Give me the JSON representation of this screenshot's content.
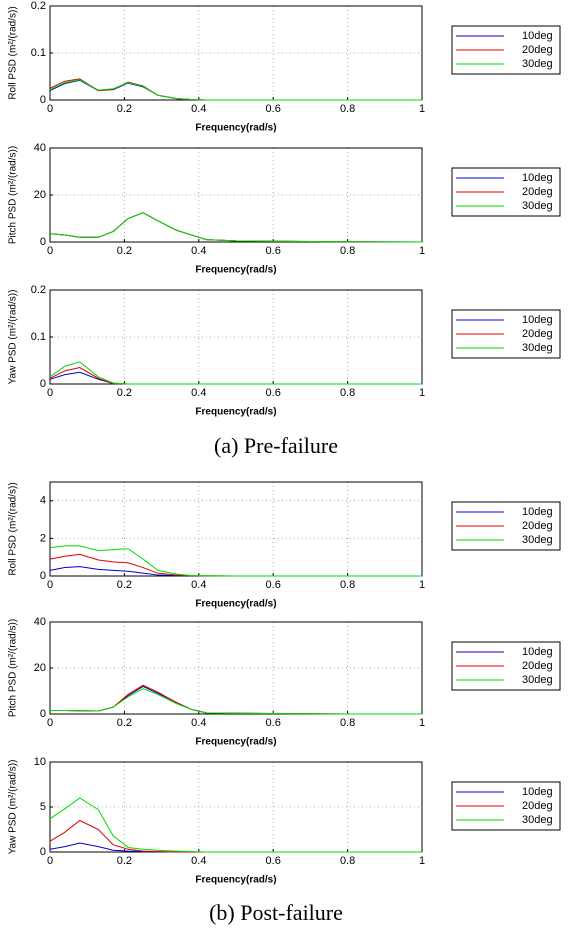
{
  "captions": [
    "(a) Pre-failure",
    "(b) Post-failure"
  ],
  "chart_data": [
    {
      "type": "line",
      "xlabel": "Frequency(rad/s)",
      "ylabel": "Roll PSD (m²/(rad/s))",
      "x": [
        0,
        0.04,
        0.08,
        0.13,
        0.17,
        0.21,
        0.25,
        0.29,
        0.34,
        0.38,
        0.42,
        0.5,
        0.6,
        0.7,
        0.8,
        1
      ],
      "xlim": [
        0,
        1
      ],
      "xticks": [
        0,
        0.2,
        0.4,
        0.6,
        0.8,
        1
      ],
      "ylim": [
        0,
        0.2
      ],
      "yticks": [
        0,
        0.1,
        0.2
      ],
      "grid": true,
      "series": [
        {
          "name": "10deg",
          "color": "#0000cc",
          "values": [
            0.02,
            0.035,
            0.042,
            0.02,
            0.022,
            0.036,
            0.028,
            0.01,
            0.003,
            0.001,
            0,
            0,
            0,
            0,
            0,
            0
          ]
        },
        {
          "name": "20deg",
          "color": "#dd0000",
          "values": [
            0.025,
            0.04,
            0.045,
            0.02,
            0.023,
            0.038,
            0.03,
            0.01,
            0.003,
            0.001,
            0,
            0,
            0,
            0,
            0,
            0
          ]
        },
        {
          "name": "30deg",
          "color": "#00dd00",
          "values": [
            0.022,
            0.037,
            0.043,
            0.021,
            0.024,
            0.037,
            0.029,
            0.01,
            0.003,
            0.001,
            0,
            0,
            0,
            0,
            0,
            0
          ]
        }
      ]
    },
    {
      "type": "line",
      "xlabel": "Frequency(rad/s)",
      "ylabel": "Pitch PSD (m²/(rad/s))",
      "x": [
        0,
        0.04,
        0.08,
        0.13,
        0.17,
        0.21,
        0.25,
        0.29,
        0.34,
        0.38,
        0.42,
        0.5,
        0.6,
        0.7,
        0.8,
        1
      ],
      "xlim": [
        0,
        1
      ],
      "xticks": [
        0,
        0.2,
        0.4,
        0.6,
        0.8,
        1
      ],
      "ylim": [
        0,
        40
      ],
      "yticks": [
        0,
        20,
        40
      ],
      "grid": true,
      "series": [
        {
          "name": "10deg",
          "color": "#0000cc",
          "values": [
            3.5,
            3,
            2,
            2,
            4.5,
            10,
            12.5,
            9,
            5,
            3,
            1,
            0.5,
            0.3,
            0.2,
            0.1,
            0
          ]
        },
        {
          "name": "20deg",
          "color": "#dd0000",
          "values": [
            3.5,
            3,
            2,
            2,
            4.5,
            10,
            12.5,
            9,
            5,
            3,
            1,
            0.5,
            0.3,
            0.2,
            0.1,
            0
          ]
        },
        {
          "name": "30deg",
          "color": "#00dd00",
          "values": [
            3.5,
            3,
            2,
            2,
            4.5,
            10,
            12.5,
            9,
            5,
            3,
            1,
            0.5,
            0.3,
            0.2,
            0.1,
            0
          ]
        }
      ]
    },
    {
      "type": "line",
      "xlabel": "Frequency(rad/s)",
      "ylabel": "Yaw PSD (m²/(rad/s))",
      "x": [
        0,
        0.04,
        0.08,
        0.13,
        0.17,
        0.21,
        0.25,
        0.29,
        0.34,
        0.38,
        0.42,
        0.5,
        0.6,
        0.7,
        0.8,
        1
      ],
      "xlim": [
        0,
        1
      ],
      "xticks": [
        0,
        0.2,
        0.4,
        0.6,
        0.8,
        1
      ],
      "ylim": [
        0,
        0.2
      ],
      "yticks": [
        0,
        0.1,
        0.2
      ],
      "grid": true,
      "series": [
        {
          "name": "10deg",
          "color": "#0000cc",
          "values": [
            0.01,
            0.02,
            0.025,
            0.01,
            0.001,
            0,
            0,
            0,
            0,
            0,
            0,
            0,
            0,
            0,
            0,
            0
          ]
        },
        {
          "name": "20deg",
          "color": "#dd0000",
          "values": [
            0.012,
            0.028,
            0.035,
            0.012,
            0.001,
            0,
            0,
            0,
            0,
            0,
            0,
            0,
            0,
            0,
            0,
            0
          ]
        },
        {
          "name": "30deg",
          "color": "#00dd00",
          "values": [
            0.015,
            0.038,
            0.047,
            0.015,
            0.002,
            0,
            0,
            0,
            0,
            0,
            0,
            0,
            0,
            0,
            0,
            0
          ]
        }
      ]
    },
    {
      "type": "line",
      "xlabel": "Frequency(rad/s)",
      "ylabel": "Roll PSD (m²/(rad/s))",
      "x": [
        0,
        0.04,
        0.08,
        0.13,
        0.17,
        0.21,
        0.25,
        0.29,
        0.34,
        0.38,
        0.42,
        0.5,
        0.6,
        0.7,
        0.8,
        1
      ],
      "xlim": [
        0,
        1
      ],
      "xticks": [
        0,
        0.2,
        0.4,
        0.6,
        0.8,
        1
      ],
      "ylim": [
        0,
        5
      ],
      "yticks": [
        0,
        2,
        4
      ],
      "grid": true,
      "series": [
        {
          "name": "10deg",
          "color": "#0000cc",
          "values": [
            0.3,
            0.45,
            0.5,
            0.35,
            0.3,
            0.25,
            0.15,
            0.05,
            0.02,
            0.01,
            0,
            0,
            0,
            0,
            0,
            0
          ]
        },
        {
          "name": "20deg",
          "color": "#dd0000",
          "values": [
            0.9,
            1.05,
            1.15,
            0.85,
            0.75,
            0.7,
            0.45,
            0.15,
            0.05,
            0.02,
            0.01,
            0,
            0,
            0,
            0,
            0
          ]
        },
        {
          "name": "30deg",
          "color": "#00dd00",
          "values": [
            1.5,
            1.6,
            1.6,
            1.35,
            1.4,
            1.45,
            0.9,
            0.3,
            0.1,
            0.03,
            0.01,
            0,
            0,
            0,
            0,
            0
          ]
        }
      ]
    },
    {
      "type": "line",
      "xlabel": "Frequency(rad/s)",
      "ylabel": "Pitch PSD (m²/(rad/s))",
      "x": [
        0,
        0.04,
        0.08,
        0.13,
        0.17,
        0.21,
        0.25,
        0.29,
        0.34,
        0.38,
        0.42,
        0.5,
        0.6,
        0.7,
        0.8,
        1
      ],
      "xlim": [
        0,
        1
      ],
      "xticks": [
        0,
        0.2,
        0.4,
        0.6,
        0.8,
        1
      ],
      "ylim": [
        0,
        40
      ],
      "yticks": [
        0,
        20,
        40
      ],
      "grid": true,
      "series": [
        {
          "name": "10deg",
          "color": "#0000cc",
          "values": [
            1.5,
            1.5,
            1.4,
            1.3,
            3,
            8,
            12,
            9,
            5,
            2,
            0.5,
            0.3,
            0.2,
            0.1,
            0,
            0
          ]
        },
        {
          "name": "20deg",
          "color": "#dd0000",
          "values": [
            1.5,
            1.5,
            1.4,
            1.3,
            3,
            8.5,
            12.5,
            9.5,
            5,
            2,
            0.5,
            0.3,
            0.2,
            0.1,
            0,
            0
          ]
        },
        {
          "name": "30deg",
          "color": "#00dd00",
          "values": [
            1.5,
            1.5,
            1.4,
            1.3,
            3,
            7.5,
            11,
            8.5,
            4.5,
            2,
            0.5,
            0.3,
            0.2,
            0.1,
            0,
            0
          ]
        }
      ]
    },
    {
      "type": "line",
      "xlabel": "Frequency(rad/s)",
      "ylabel": "Yaw PSD (m²/(rad/s))",
      "x": [
        0,
        0.04,
        0.08,
        0.13,
        0.17,
        0.21,
        0.25,
        0.29,
        0.34,
        0.38,
        0.42,
        0.5,
        0.6,
        0.7,
        0.8,
        1
      ],
      "xlim": [
        0,
        1
      ],
      "xticks": [
        0,
        0.2,
        0.4,
        0.6,
        0.8,
        1
      ],
      "ylim": [
        0,
        10
      ],
      "yticks": [
        0,
        5,
        10
      ],
      "grid": true,
      "series": [
        {
          "name": "10deg",
          "color": "#0000cc",
          "values": [
            0.3,
            0.6,
            1,
            0.6,
            0.2,
            0.1,
            0.05,
            0,
            0,
            0,
            0,
            0,
            0,
            0,
            0,
            0
          ]
        },
        {
          "name": "20deg",
          "color": "#dd0000",
          "values": [
            1.2,
            2.2,
            3.5,
            2.5,
            0.8,
            0.3,
            0.1,
            0.05,
            0,
            0,
            0,
            0,
            0,
            0,
            0,
            0
          ]
        },
        {
          "name": "30deg",
          "color": "#00dd00",
          "values": [
            3.7,
            4.8,
            6,
            4.7,
            1.8,
            0.5,
            0.3,
            0.2,
            0.1,
            0.05,
            0,
            0,
            0,
            0,
            0,
            0
          ]
        }
      ]
    }
  ]
}
